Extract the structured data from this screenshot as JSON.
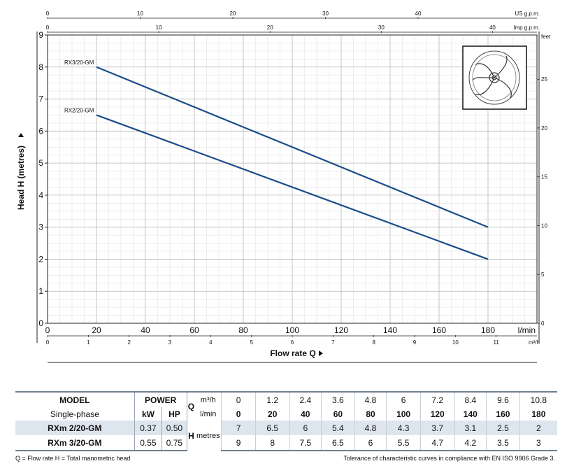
{
  "chart_data": {
    "type": "line",
    "x_axis": {
      "label": "l/min",
      "title": "Flow rate  Q",
      "ticks": [
        0,
        20,
        40,
        60,
        80,
        100,
        120,
        140,
        160,
        180
      ],
      "xlim": [
        0,
        200
      ]
    },
    "y_axis": {
      "title": "Head H (metres)",
      "ticks": [
        0,
        1,
        2,
        3,
        4,
        5,
        6,
        7,
        8,
        9
      ],
      "ylim": [
        0,
        9
      ]
    },
    "secondary_x_axes": [
      {
        "label": "m³/h",
        "ticks": [
          0,
          1,
          2,
          3,
          4,
          5,
          6,
          7,
          8,
          9,
          10,
          11
        ],
        "scale_to_primary": 16.6667
      },
      {
        "label": "US g.p.m.",
        "ticks": [
          0,
          10,
          20,
          30,
          40
        ],
        "scale_to_primary": 3.7854
      },
      {
        "label": "Imp g.p.m.",
        "ticks": [
          0,
          10,
          20,
          30,
          40
        ],
        "scale_to_primary": 4.546
      }
    ],
    "secondary_y_axis": {
      "label": "feet",
      "ticks": [
        0,
        5,
        10,
        15,
        20,
        25
      ],
      "scale_to_primary": 0.3048
    },
    "series": [
      {
        "name": "RX3/20-GM",
        "x": [
          20,
          180
        ],
        "y": [
          8,
          3
        ]
      },
      {
        "name": "RX2/20-GM",
        "x": [
          20,
          180
        ],
        "y": [
          6.5,
          2
        ]
      }
    ],
    "grid": true,
    "line_color": "#1b4d8a"
  },
  "table": {
    "model_header": "MODEL",
    "phase_label": "Single-phase",
    "power_header": "POWER",
    "kw_header": "kW",
    "hp_header": "HP",
    "q_symbol": "Q",
    "q_unit_m3h": "m³/h",
    "q_unit_lmin": "l/min",
    "h_symbol": "H",
    "h_unit": "metres",
    "q_m3h": [
      "0",
      "1.2",
      "2.4",
      "3.6",
      "4.8",
      "6",
      "7.2",
      "8.4",
      "9.6",
      "10.8"
    ],
    "q_lmin": [
      "0",
      "20",
      "40",
      "60",
      "80",
      "100",
      "120",
      "140",
      "160",
      "180"
    ],
    "rows": [
      {
        "model": "RXm 2/20-GM",
        "kw": "0.37",
        "hp": "0.50",
        "h": [
          "7",
          "6.5",
          "6",
          "5.4",
          "4.8",
          "4.3",
          "3.7",
          "3.1",
          "2.5",
          "2"
        ]
      },
      {
        "model": "RXm 3/20-GM",
        "kw": "0.55",
        "hp": "0.75",
        "h": [
          "9",
          "8",
          "7.5",
          "6.5",
          "6",
          "5.5",
          "4.7",
          "4.2",
          "3.5",
          "3"
        ]
      }
    ]
  },
  "footer": {
    "legend": "Q = Flow rate   H = Total manometric head",
    "tolerance": "Tolerance of characteristic curves in compliance with  EN ISO 9906 Grade 3."
  }
}
